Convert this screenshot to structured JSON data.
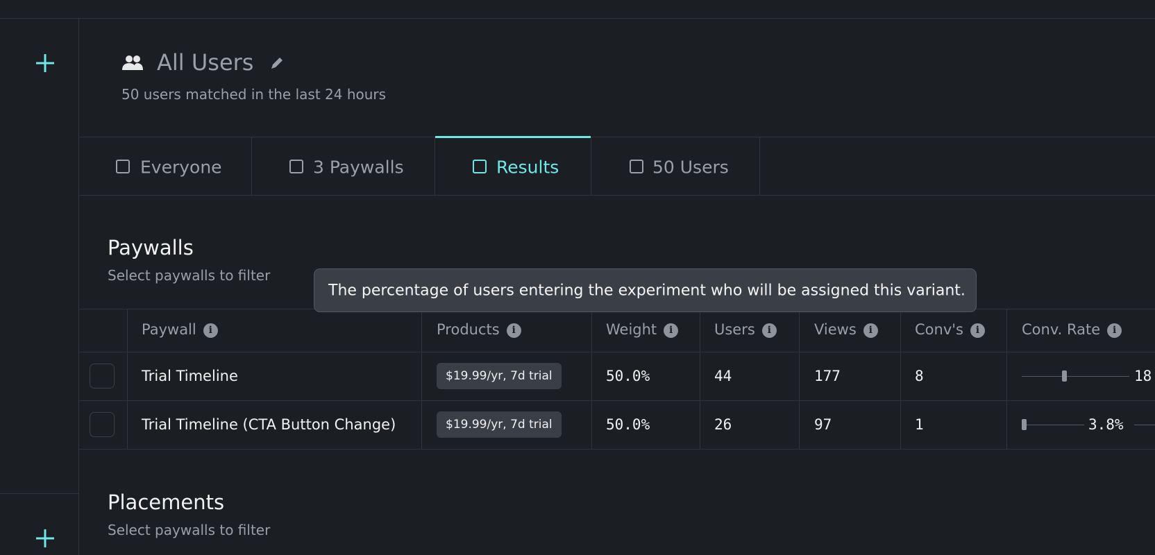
{
  "header": {
    "title": "All Users",
    "subtitle": "50 users matched in the last 24 hours"
  },
  "tabs": {
    "items": [
      "Everyone",
      "3 Paywalls",
      "Results",
      "50 Users"
    ],
    "active": 2
  },
  "paywalls": {
    "title": "Paywalls",
    "subtitle": "Select paywalls to filter"
  },
  "tooltip": "The percentage of users entering the experiment who will be assigned this variant.",
  "table": {
    "columns": [
      "Paywall",
      "Products",
      "Weight",
      "Users",
      "Views",
      "Conv's",
      "Conv. Rate"
    ],
    "rows": [
      [
        "Trial Timeline",
        "$19.99/yr, 7d trial",
        "50.0%",
        "44",
        "177",
        "8",
        "18"
      ],
      [
        "Trial Timeline (CTA Button Change)",
        "$19.99/yr, 7d trial",
        "50.0%",
        "26",
        "97",
        "1",
        "3.8%"
      ]
    ]
  },
  "placements": {
    "title": "Placements",
    "subtitle": "Select paywalls to filter"
  }
}
